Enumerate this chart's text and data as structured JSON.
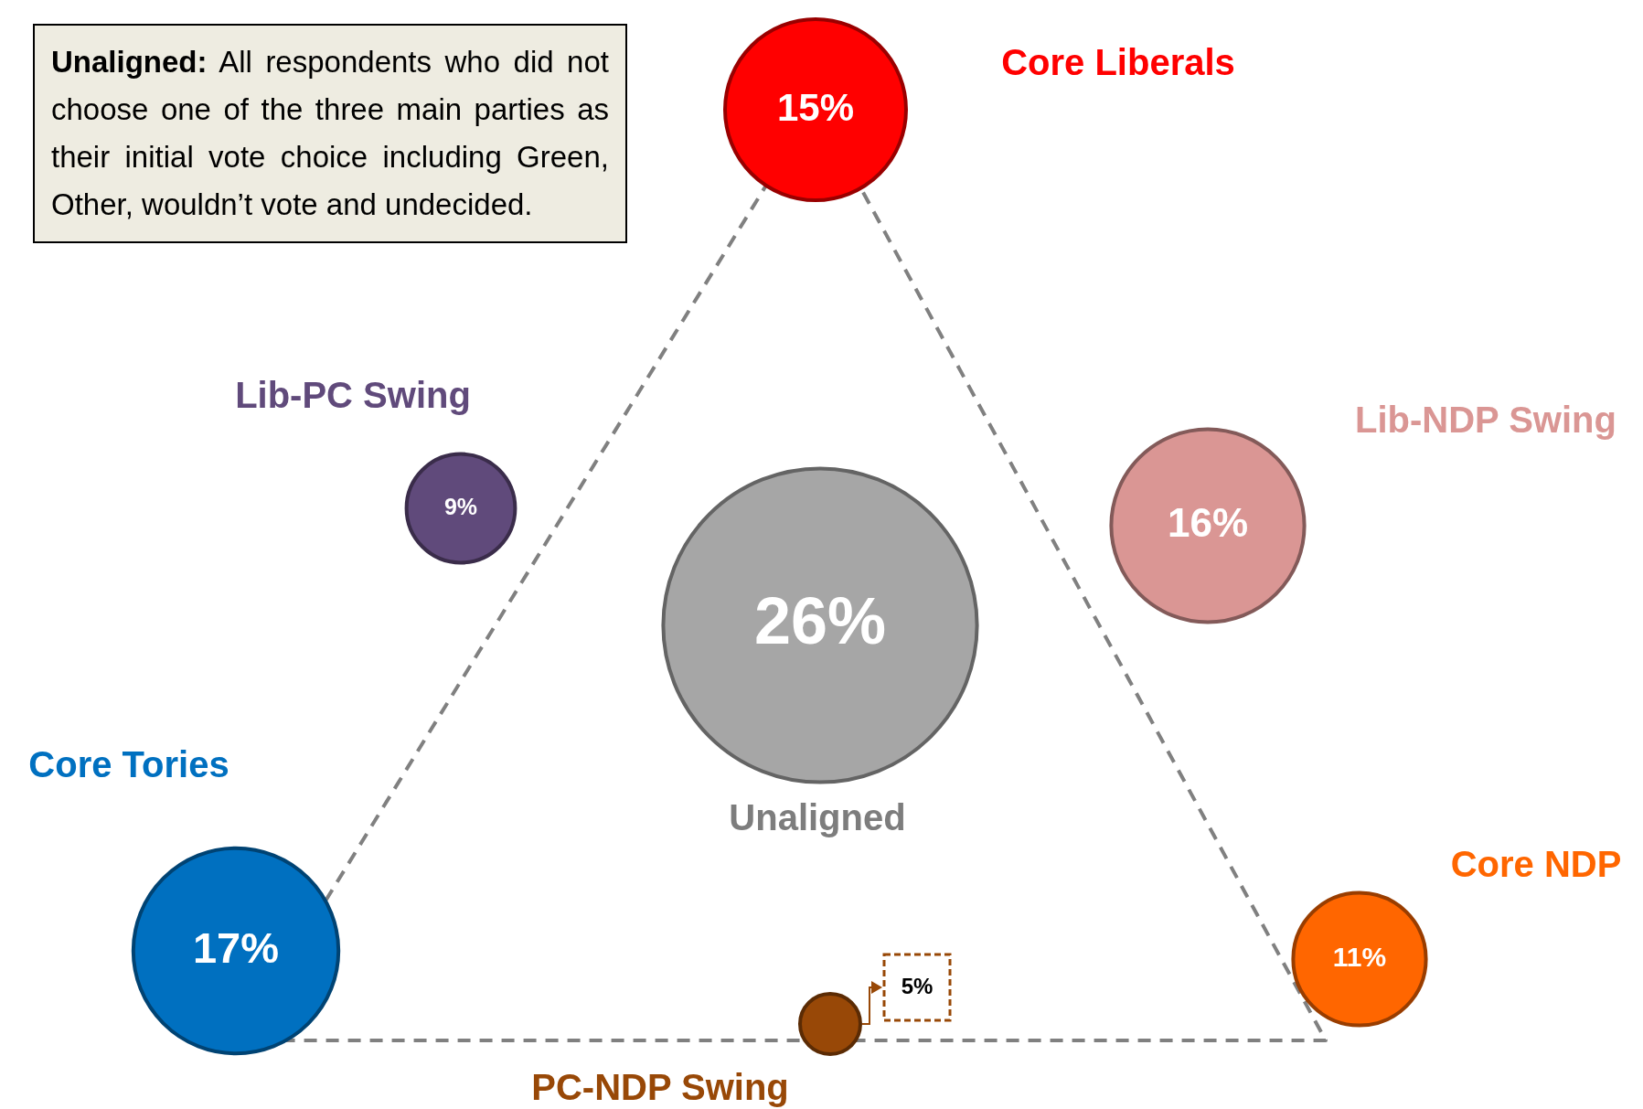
{
  "chart_data": {
    "type": "other",
    "categories": [
      "Core Liberals",
      "Lib-PC Swing",
      "Lib-NDP Swing",
      "Unaligned",
      "Core Tories",
      "Core NDP",
      "PC-NDP Swing"
    ],
    "values": [
      15,
      9,
      16,
      26,
      17,
      11,
      5
    ],
    "value_labels": [
      "15%",
      "9%",
      "16%",
      "26%",
      "17%",
      "11%",
      "5%"
    ],
    "colors": [
      "#ff0000",
      "#604a7b",
      "#da9694",
      "#a6a6a6",
      "#0070c0",
      "#ff6600",
      "#984807"
    ],
    "annotations": [
      "Unaligned: All respondents who did not choose one of the three main parties as their initial vote choice including Green, Other, wouldn’t vote and undecided."
    ]
  }
}
